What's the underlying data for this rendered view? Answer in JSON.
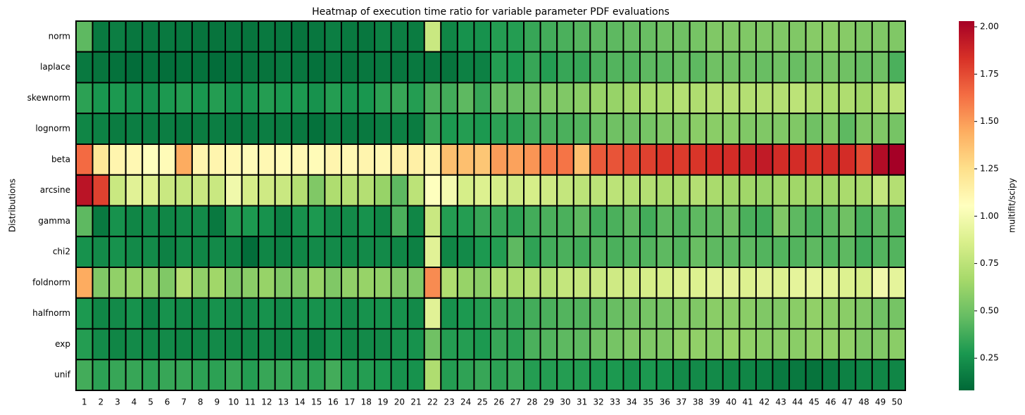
{
  "chart_data": {
    "type": "heatmap",
    "title": "Heatmap of execution time ratio for variable parameter PDF evaluations",
    "ylabel": "Distributions",
    "colorbar_label": "multifit/scipy",
    "colormap": "RdYlGn_r",
    "zlim": [
      0.08,
      2.03
    ],
    "zticks": [
      0.25,
      {
        "value": 0.5,
        "label": "0.50"
      },
      0.75,
      {
        "value": 1.0,
        "label": "1.00"
      },
      1.25,
      {
        "value": 1.5,
        "label": "1.50"
      },
      1.75,
      {
        "value": 2.0,
        "label": "2.00"
      }
    ],
    "x": [
      1,
      2,
      3,
      4,
      5,
      6,
      7,
      8,
      9,
      10,
      11,
      12,
      13,
      14,
      15,
      16,
      17,
      18,
      19,
      20,
      21,
      22,
      23,
      24,
      25,
      26,
      27,
      28,
      29,
      30,
      31,
      32,
      33,
      34,
      35,
      36,
      37,
      38,
      39,
      40,
      41,
      42,
      43,
      44,
      45,
      46,
      47,
      48,
      49,
      50
    ],
    "rows": [
      "norm",
      "laplace",
      "skewnorm",
      "lognorm",
      "beta",
      "arcsine",
      "gamma",
      "chi2",
      "foldnorm",
      "halfnorm",
      "exp",
      "unif"
    ],
    "values": [
      [
        0.45,
        0.15,
        0.17,
        0.14,
        0.14,
        0.15,
        0.14,
        0.13,
        0.13,
        0.14,
        0.13,
        0.15,
        0.14,
        0.13,
        0.14,
        0.17,
        0.15,
        0.14,
        0.18,
        0.17,
        0.16,
        0.8,
        0.2,
        0.25,
        0.25,
        0.3,
        0.3,
        0.35,
        0.38,
        0.4,
        0.43,
        0.45,
        0.45,
        0.47,
        0.48,
        0.5,
        0.5,
        0.52,
        0.55,
        0.55,
        0.55,
        0.55,
        0.55,
        0.55,
        0.57,
        0.58,
        0.57,
        0.55,
        0.55,
        0.55
      ],
      [
        0.15,
        0.13,
        0.12,
        0.1,
        0.12,
        0.11,
        0.12,
        0.12,
        0.1,
        0.12,
        0.13,
        0.13,
        0.15,
        0.14,
        0.12,
        0.14,
        0.13,
        0.14,
        0.15,
        0.14,
        0.15,
        0.15,
        0.13,
        0.18,
        0.18,
        0.3,
        0.28,
        0.35,
        0.3,
        0.35,
        0.35,
        0.4,
        0.42,
        0.42,
        0.45,
        0.45,
        0.48,
        0.45,
        0.5,
        0.5,
        0.5,
        0.48,
        0.5,
        0.48,
        0.5,
        0.52,
        0.5,
        0.48,
        0.5,
        0.4
      ],
      [
        0.32,
        0.27,
        0.28,
        0.25,
        0.24,
        0.28,
        0.3,
        0.27,
        0.3,
        0.25,
        0.26,
        0.3,
        0.28,
        0.28,
        0.25,
        0.3,
        0.26,
        0.27,
        0.32,
        0.35,
        0.3,
        0.4,
        0.38,
        0.45,
        0.35,
        0.48,
        0.48,
        0.5,
        0.55,
        0.55,
        0.58,
        0.62,
        0.62,
        0.65,
        0.68,
        0.68,
        0.72,
        0.7,
        0.72,
        0.72,
        0.72,
        0.72,
        0.72,
        0.75,
        0.7,
        0.68,
        0.7,
        0.65,
        0.7,
        0.75
      ],
      [
        0.2,
        0.18,
        0.16,
        0.17,
        0.16,
        0.17,
        0.15,
        0.16,
        0.17,
        0.15,
        0.15,
        0.17,
        0.16,
        0.15,
        0.12,
        0.17,
        0.15,
        0.15,
        0.17,
        0.18,
        0.16,
        0.35,
        0.28,
        0.3,
        0.28,
        0.32,
        0.32,
        0.38,
        0.4,
        0.4,
        0.42,
        0.48,
        0.5,
        0.5,
        0.52,
        0.55,
        0.55,
        0.58,
        0.58,
        0.58,
        0.55,
        0.55,
        0.55,
        0.55,
        0.5,
        0.55,
        0.45,
        0.55,
        0.55,
        0.52
      ],
      [
        1.65,
        1.2,
        1.12,
        1.1,
        1.05,
        1.08,
        1.45,
        1.12,
        1.12,
        1.1,
        1.08,
        1.1,
        1.08,
        1.1,
        1.08,
        1.12,
        1.1,
        1.12,
        1.1,
        1.15,
        1.15,
        1.12,
        1.38,
        1.38,
        1.35,
        1.5,
        1.48,
        1.52,
        1.6,
        1.62,
        1.38,
        1.7,
        1.72,
        1.75,
        1.78,
        1.82,
        1.8,
        1.82,
        1.85,
        1.85,
        1.88,
        1.92,
        1.85,
        1.85,
        1.82,
        1.85,
        1.85,
        1.75,
        1.98,
        2.03
      ],
      [
        1.95,
        1.78,
        0.8,
        0.9,
        0.88,
        0.8,
        0.78,
        0.8,
        0.8,
        0.98,
        0.85,
        0.82,
        0.8,
        0.72,
        0.55,
        0.7,
        0.72,
        0.72,
        0.62,
        0.45,
        0.75,
        1.05,
        1.0,
        0.85,
        0.88,
        0.85,
        0.82,
        0.85,
        0.82,
        0.78,
        0.75,
        0.75,
        0.75,
        0.72,
        0.72,
        0.68,
        0.68,
        0.72,
        0.68,
        0.65,
        0.65,
        0.62,
        0.65,
        0.65,
        0.65,
        0.65,
        0.68,
        0.68,
        0.78,
        0.72
      ],
      [
        0.45,
        0.15,
        0.25,
        0.2,
        0.22,
        0.2,
        0.22,
        0.22,
        0.15,
        0.3,
        0.28,
        0.25,
        0.18,
        0.25,
        0.28,
        0.22,
        0.22,
        0.25,
        0.2,
        0.4,
        0.2,
        0.8,
        0.3,
        0.3,
        0.35,
        0.35,
        0.33,
        0.38,
        0.4,
        0.4,
        0.45,
        0.38,
        0.4,
        0.45,
        0.38,
        0.45,
        0.42,
        0.45,
        0.45,
        0.5,
        0.4,
        0.38,
        0.55,
        0.45,
        0.4,
        0.45,
        0.5,
        0.4,
        0.45,
        0.42
      ],
      [
        0.25,
        0.22,
        0.25,
        0.22,
        0.22,
        0.18,
        0.22,
        0.2,
        0.22,
        0.2,
        0.1,
        0.2,
        0.18,
        0.2,
        0.22,
        0.22,
        0.2,
        0.22,
        0.22,
        0.2,
        0.18,
        0.9,
        0.2,
        0.22,
        0.28,
        0.3,
        0.45,
        0.33,
        0.38,
        0.4,
        0.38,
        0.42,
        0.4,
        0.42,
        0.42,
        0.45,
        0.42,
        0.48,
        0.45,
        0.45,
        0.45,
        0.42,
        0.42,
        0.42,
        0.45,
        0.42,
        0.45,
        0.38,
        0.42,
        0.42
      ],
      [
        1.45,
        0.55,
        0.6,
        0.62,
        0.6,
        0.55,
        0.72,
        0.6,
        0.65,
        0.55,
        0.58,
        0.62,
        0.55,
        0.55,
        0.62,
        0.55,
        0.6,
        0.62,
        0.6,
        0.55,
        0.55,
        1.55,
        0.7,
        0.62,
        0.58,
        0.7,
        0.68,
        0.72,
        0.72,
        0.78,
        0.78,
        0.8,
        0.82,
        0.82,
        0.85,
        0.85,
        0.88,
        0.88,
        0.9,
        0.9,
        0.88,
        0.9,
        0.88,
        0.92,
        0.92,
        0.9,
        0.88,
        0.85,
        0.98,
        0.92
      ],
      [
        0.28,
        0.2,
        0.22,
        0.25,
        0.18,
        0.25,
        0.22,
        0.2,
        0.25,
        0.22,
        0.22,
        0.25,
        0.22,
        0.25,
        0.25,
        0.25,
        0.22,
        0.25,
        0.25,
        0.25,
        0.22,
        0.9,
        0.25,
        0.28,
        0.3,
        0.35,
        0.35,
        0.38,
        0.4,
        0.42,
        0.42,
        0.45,
        0.48,
        0.5,
        0.52,
        0.52,
        0.55,
        0.55,
        0.58,
        0.58,
        0.58,
        0.55,
        0.55,
        0.58,
        0.6,
        0.58,
        0.58,
        0.55,
        0.5,
        0.52
      ],
      [
        0.3,
        0.22,
        0.2,
        0.22,
        0.2,
        0.22,
        0.2,
        0.2,
        0.22,
        0.2,
        0.2,
        0.22,
        0.2,
        0.22,
        0.18,
        0.25,
        0.2,
        0.22,
        0.22,
        0.25,
        0.25,
        0.5,
        0.3,
        0.3,
        0.28,
        0.35,
        0.32,
        0.4,
        0.42,
        0.45,
        0.45,
        0.5,
        0.52,
        0.55,
        0.55,
        0.55,
        0.6,
        0.6,
        0.58,
        0.62,
        0.6,
        0.58,
        0.58,
        0.58,
        0.6,
        0.6,
        0.6,
        0.55,
        0.55,
        0.58
      ],
      [
        0.38,
        0.32,
        0.35,
        0.35,
        0.32,
        0.35,
        0.35,
        0.32,
        0.32,
        0.35,
        0.3,
        0.35,
        0.35,
        0.33,
        0.32,
        0.38,
        0.3,
        0.3,
        0.28,
        0.25,
        0.25,
        0.7,
        0.3,
        0.33,
        0.35,
        0.32,
        0.35,
        0.3,
        0.3,
        0.3,
        0.3,
        0.28,
        0.28,
        0.25,
        0.28,
        0.25,
        0.22,
        0.22,
        0.22,
        0.2,
        0.2,
        0.18,
        0.15,
        0.15,
        0.13,
        0.15,
        0.18,
        0.2,
        0.2,
        0.2
      ]
    ]
  }
}
